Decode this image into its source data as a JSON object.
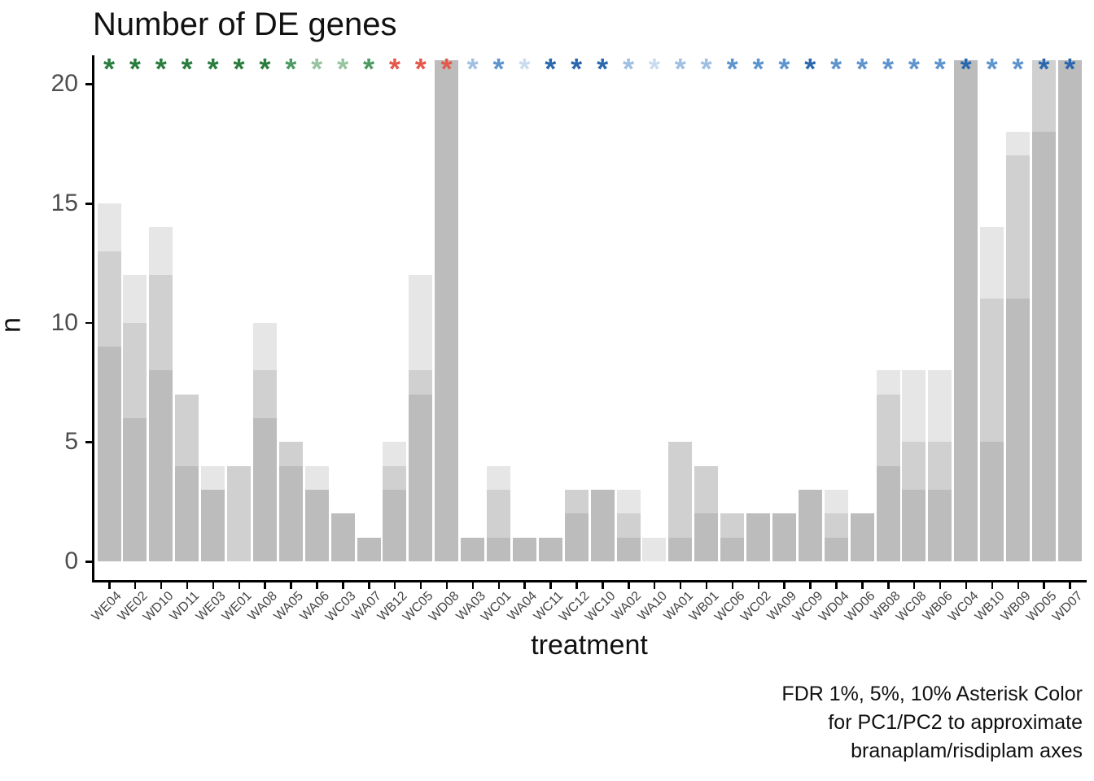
{
  "title": "Number of DE genes",
  "y_axis_title": "n",
  "x_axis_title": "treatment",
  "caption": {
    "line1": "FDR 1%, 5%, 10% Asterisk Color",
    "line2": "for PC1/PC2 to approximate",
    "line3": "branaplam/risdiplam axes"
  },
  "chart_data": {
    "type": "bar",
    "subtype": "overlaid-stacked-grayscale",
    "title": "Number of DE genes",
    "xlabel": "treatment",
    "ylabel": "n",
    "ylim": [
      0,
      21
    ],
    "y_ticks": [
      0,
      5,
      10,
      15,
      20
    ],
    "grid": false,
    "legend": false,
    "clip_value": 21,
    "note": "values of 21 indicate the bar is clipped at the top of the panel",
    "categories": [
      "WE04",
      "WE02",
      "WD10",
      "WD11",
      "WE03",
      "WE01",
      "WA08",
      "WA05",
      "WA06",
      "WC03",
      "WA07",
      "WB12",
      "WC05",
      "WD08",
      "WA03",
      "WC01",
      "WA04",
      "WC11",
      "WC12",
      "WC10",
      "WA02",
      "WA10",
      "WA01",
      "WB01",
      "WC06",
      "WC02",
      "WA09",
      "WC09",
      "WD04",
      "WD06",
      "WB08",
      "WC08",
      "WB06",
      "WC04",
      "WB10",
      "WB09",
      "WD05",
      "WD07"
    ],
    "series": [
      {
        "name": "FDR 1%",
        "shade": "dark",
        "values": [
          9,
          6,
          8,
          4,
          3,
          0,
          6,
          4,
          3,
          2,
          1,
          3,
          7,
          21,
          1,
          1,
          1,
          1,
          2,
          3,
          1,
          0,
          1,
          2,
          1,
          2,
          2,
          3,
          1,
          2,
          4,
          3,
          3,
          21,
          5,
          11,
          18,
          21
        ]
      },
      {
        "name": "FDR 5%",
        "shade": "medium",
        "values": [
          13,
          10,
          12,
          7,
          3,
          4,
          8,
          5,
          3,
          2,
          1,
          4,
          8,
          21,
          1,
          3,
          1,
          1,
          3,
          3,
          2,
          0,
          5,
          4,
          2,
          2,
          2,
          3,
          2,
          2,
          7,
          5,
          5,
          21,
          11,
          17,
          21,
          21
        ]
      },
      {
        "name": "FDR 10%",
        "shade": "light",
        "values": [
          15,
          12,
          14,
          7,
          4,
          4,
          10,
          5,
          4,
          2,
          1,
          5,
          12,
          21,
          1,
          4,
          1,
          1,
          3,
          3,
          3,
          1,
          5,
          4,
          2,
          2,
          2,
          3,
          3,
          2,
          8,
          8,
          8,
          21,
          14,
          18,
          21,
          21
        ]
      }
    ],
    "bar_colors": {
      "dark": "#BCBCBC",
      "medium": "#D0D0D0",
      "light": "#E6E6E6"
    },
    "asterisk_palette": {
      "green_dark": "#2B7D3F",
      "green_med": "#4F9A63",
      "green_light": "#97C4A0",
      "red": "#E4584A",
      "blue_pale": "#C9DCEF",
      "blue_light": "#9FC0E2",
      "blue_med": "#5E94CD",
      "blue_dark": "#2A67AE"
    },
    "asterisk_colors": [
      "green_dark",
      "green_dark",
      "green_dark",
      "green_dark",
      "green_dark",
      "green_dark",
      "green_dark",
      "green_med",
      "green_light",
      "green_light",
      "green_med",
      "red",
      "red",
      "red",
      "blue_light",
      "blue_med",
      "blue_pale",
      "blue_dark",
      "blue_dark",
      "blue_dark",
      "blue_light",
      "blue_pale",
      "blue_light",
      "blue_light",
      "blue_med",
      "blue_med",
      "blue_med",
      "blue_dark",
      "blue_med",
      "blue_med",
      "blue_med",
      "blue_med",
      "blue_med",
      "blue_dark",
      "blue_med",
      "blue_med",
      "blue_dark",
      "blue_dark"
    ],
    "asterisk_glyph": "*"
  },
  "text_colors": {
    "title": "#111111",
    "axis_text": "#4d4d4d",
    "axis_title": "#111111",
    "caption": "#111111"
  }
}
